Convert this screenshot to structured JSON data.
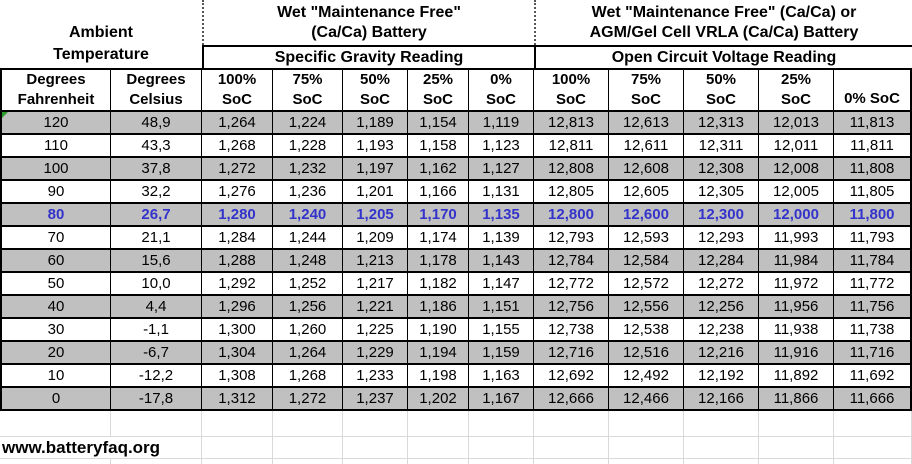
{
  "header": {
    "ambient_line1": "Ambient",
    "ambient_line2": "Temperature",
    "battery1_title_line1": "Wet \"Maintenance Free\"",
    "battery1_title_line2": "(Ca/Ca) Battery",
    "battery2_title_line1": "Wet \"Maintenance Free\" (Ca/Ca) or",
    "battery2_title_line2": "AGM/Gel Cell VRLA (Ca/Ca) Battery",
    "sg_reading_label": "Specific Gravity Reading",
    "ocv_reading_label": "Open Circuit Voltage Reading",
    "col_degrees_f_line1": "Degrees",
    "col_degrees_f_line2": "Fahrenheit",
    "col_degrees_c_line1": "Degrees",
    "col_degrees_c_line2": "Celsius",
    "soc_cols": [
      "100%",
      "75%",
      "50%",
      "25%",
      "0%"
    ],
    "soc_suffix": "SoC",
    "last_col_label": "0% SoC"
  },
  "footer": {
    "url": "www.batteryfaq.org"
  },
  "colors": {
    "row_gray": "#C0C0C0",
    "highlight_text": "#3333CC",
    "light_grid": "#D9D9D9",
    "border_black": "#000000",
    "error_indicator_green": "#2E9B2E"
  },
  "chart_data": {
    "type": "table",
    "title": "Battery State of Charge vs Temperature: Specific Gravity and Open Circuit Voltage",
    "columns": [
      "Degrees Fahrenheit",
      "Degrees Celsius",
      "Specific Gravity 100% SoC",
      "Specific Gravity 75% SoC",
      "Specific Gravity 50% SoC",
      "Specific Gravity 25% SoC",
      "Specific Gravity 0% SoC",
      "Open Circuit Voltage 100% SoC",
      "Open Circuit Voltage 75% SoC",
      "Open Circuit Voltage 50% SoC",
      "Open Circuit Voltage 25% SoC",
      "Open Circuit Voltage 0% SoC"
    ],
    "rows": [
      [
        "120",
        "48,9",
        "1,264",
        "1,224",
        "1,189",
        "1,154",
        "1,119",
        "12,813",
        "12,613",
        "12,313",
        "12,013",
        "11,813"
      ],
      [
        "110",
        "43,3",
        "1,268",
        "1,228",
        "1,193",
        "1,158",
        "1,123",
        "12,811",
        "12,611",
        "12,311",
        "12,011",
        "11,811"
      ],
      [
        "100",
        "37,8",
        "1,272",
        "1,232",
        "1,197",
        "1,162",
        "1,127",
        "12,808",
        "12,608",
        "12,308",
        "12,008",
        "11,808"
      ],
      [
        "90",
        "32,2",
        "1,276",
        "1,236",
        "1,201",
        "1,166",
        "1,131",
        "12,805",
        "12,605",
        "12,305",
        "12,005",
        "11,805"
      ],
      [
        "80",
        "26,7",
        "1,280",
        "1,240",
        "1,205",
        "1,170",
        "1,135",
        "12,800",
        "12,600",
        "12,300",
        "12,000",
        "11,800"
      ],
      [
        "70",
        "21,1",
        "1,284",
        "1,244",
        "1,209",
        "1,174",
        "1,139",
        "12,793",
        "12,593",
        "12,293",
        "11,993",
        "11,793"
      ],
      [
        "60",
        "15,6",
        "1,288",
        "1,248",
        "1,213",
        "1,178",
        "1,143",
        "12,784",
        "12,584",
        "12,284",
        "11,984",
        "11,784"
      ],
      [
        "50",
        "10,0",
        "1,292",
        "1,252",
        "1,217",
        "1,182",
        "1,147",
        "12,772",
        "12,572",
        "12,272",
        "11,972",
        "11,772"
      ],
      [
        "40",
        "4,4",
        "1,296",
        "1,256",
        "1,221",
        "1,186",
        "1,151",
        "12,756",
        "12,556",
        "12,256",
        "11,956",
        "11,756"
      ],
      [
        "30",
        "-1,1",
        "1,300",
        "1,260",
        "1,225",
        "1,190",
        "1,155",
        "12,738",
        "12,538",
        "12,238",
        "11,938",
        "11,738"
      ],
      [
        "20",
        "-6,7",
        "1,304",
        "1,264",
        "1,229",
        "1,194",
        "1,159",
        "12,716",
        "12,516",
        "12,216",
        "11,916",
        "11,716"
      ],
      [
        "10",
        "-12,2",
        "1,308",
        "1,268",
        "1,233",
        "1,198",
        "1,163",
        "12,692",
        "12,492",
        "12,192",
        "11,892",
        "11,692"
      ],
      [
        "0",
        "-17,8",
        "1,312",
        "1,272",
        "1,237",
        "1,202",
        "1,167",
        "12,666",
        "12,466",
        "12,166",
        "11,866",
        "11,666"
      ]
    ],
    "highlighted_row_index": 4,
    "gray_row_indices": [
      0,
      2,
      4,
      6,
      8,
      10,
      12
    ],
    "layout_hints": {
      "grid": "solid black borders on table, light gray spreadsheet gridlines below table",
      "dotted_page_break_lines": true
    }
  }
}
